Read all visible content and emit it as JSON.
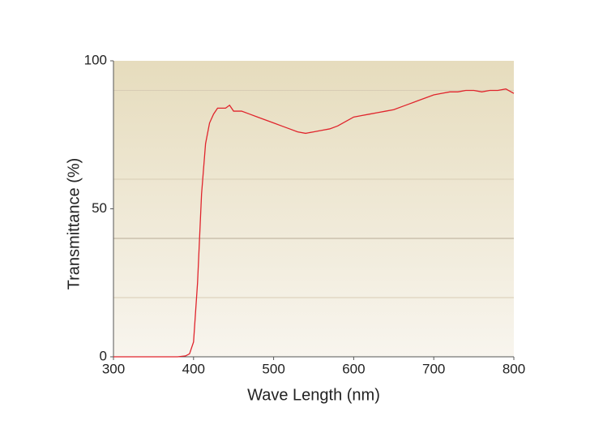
{
  "chart_data": {
    "type": "line",
    "x_label": "Wave Length (nm)",
    "y_label": "Transmittance (%)",
    "x": [
      300,
      310,
      320,
      330,
      340,
      350,
      360,
      370,
      380,
      390,
      395,
      400,
      405,
      410,
      415,
      420,
      425,
      430,
      440,
      445,
      450,
      460,
      470,
      480,
      490,
      500,
      510,
      520,
      530,
      540,
      550,
      560,
      570,
      580,
      590,
      600,
      610,
      620,
      630,
      640,
      650,
      660,
      670,
      680,
      690,
      700,
      710,
      720,
      730,
      740,
      750,
      760,
      770,
      780,
      790,
      800
    ],
    "series": [
      {
        "color": "#e0242c",
        "values": [
          0,
          0,
          0,
          0,
          0,
          0,
          0,
          0,
          0,
          0.3,
          1,
          5,
          25,
          55,
          72,
          79,
          82,
          84,
          84,
          85,
          83,
          83,
          82,
          81,
          80,
          79,
          78,
          77,
          76,
          75.5,
          76,
          76.5,
          77,
          78,
          79.5,
          81,
          81.5,
          82,
          82.5,
          83,
          83.5,
          84.5,
          85.5,
          86.5,
          87.5,
          88.5,
          89,
          89.5,
          89.5,
          90,
          90,
          89.5,
          90,
          90,
          90.5,
          89
        ]
      }
    ],
    "xlim": [
      300,
      800
    ],
    "xticks": [
      300,
      400,
      500,
      600,
      700,
      800
    ],
    "ylim": [
      0,
      100
    ],
    "yticks": [
      0,
      50,
      100
    ],
    "grid_lines": [
      20,
      40,
      60,
      90
    ]
  }
}
